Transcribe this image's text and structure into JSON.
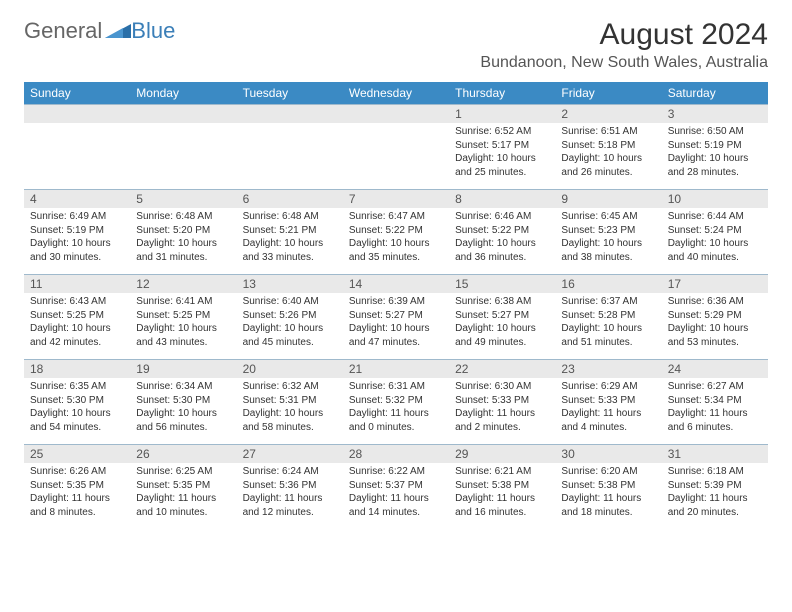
{
  "brand": {
    "part1": "General",
    "part2": "Blue"
  },
  "title": "August 2024",
  "location": "Bundanoon, New South Wales, Australia",
  "colors": {
    "header_bg": "#3b8ac4",
    "header_text": "#ffffff",
    "daynum_bg": "#e9e9e9",
    "border": "#9fb9cc",
    "logo_blue": "#3b7fb8",
    "text": "#333333"
  },
  "weekdays": [
    "Sunday",
    "Monday",
    "Tuesday",
    "Wednesday",
    "Thursday",
    "Friday",
    "Saturday"
  ],
  "weeks": [
    [
      null,
      null,
      null,
      null,
      {
        "d": "1",
        "sr": "Sunrise: 6:52 AM",
        "ss": "Sunset: 5:17 PM",
        "dl": "Daylight: 10 hours and 25 minutes."
      },
      {
        "d": "2",
        "sr": "Sunrise: 6:51 AM",
        "ss": "Sunset: 5:18 PM",
        "dl": "Daylight: 10 hours and 26 minutes."
      },
      {
        "d": "3",
        "sr": "Sunrise: 6:50 AM",
        "ss": "Sunset: 5:19 PM",
        "dl": "Daylight: 10 hours and 28 minutes."
      }
    ],
    [
      {
        "d": "4",
        "sr": "Sunrise: 6:49 AM",
        "ss": "Sunset: 5:19 PM",
        "dl": "Daylight: 10 hours and 30 minutes."
      },
      {
        "d": "5",
        "sr": "Sunrise: 6:48 AM",
        "ss": "Sunset: 5:20 PM",
        "dl": "Daylight: 10 hours and 31 minutes."
      },
      {
        "d": "6",
        "sr": "Sunrise: 6:48 AM",
        "ss": "Sunset: 5:21 PM",
        "dl": "Daylight: 10 hours and 33 minutes."
      },
      {
        "d": "7",
        "sr": "Sunrise: 6:47 AM",
        "ss": "Sunset: 5:22 PM",
        "dl": "Daylight: 10 hours and 35 minutes."
      },
      {
        "d": "8",
        "sr": "Sunrise: 6:46 AM",
        "ss": "Sunset: 5:22 PM",
        "dl": "Daylight: 10 hours and 36 minutes."
      },
      {
        "d": "9",
        "sr": "Sunrise: 6:45 AM",
        "ss": "Sunset: 5:23 PM",
        "dl": "Daylight: 10 hours and 38 minutes."
      },
      {
        "d": "10",
        "sr": "Sunrise: 6:44 AM",
        "ss": "Sunset: 5:24 PM",
        "dl": "Daylight: 10 hours and 40 minutes."
      }
    ],
    [
      {
        "d": "11",
        "sr": "Sunrise: 6:43 AM",
        "ss": "Sunset: 5:25 PM",
        "dl": "Daylight: 10 hours and 42 minutes."
      },
      {
        "d": "12",
        "sr": "Sunrise: 6:41 AM",
        "ss": "Sunset: 5:25 PM",
        "dl": "Daylight: 10 hours and 43 minutes."
      },
      {
        "d": "13",
        "sr": "Sunrise: 6:40 AM",
        "ss": "Sunset: 5:26 PM",
        "dl": "Daylight: 10 hours and 45 minutes."
      },
      {
        "d": "14",
        "sr": "Sunrise: 6:39 AM",
        "ss": "Sunset: 5:27 PM",
        "dl": "Daylight: 10 hours and 47 minutes."
      },
      {
        "d": "15",
        "sr": "Sunrise: 6:38 AM",
        "ss": "Sunset: 5:27 PM",
        "dl": "Daylight: 10 hours and 49 minutes."
      },
      {
        "d": "16",
        "sr": "Sunrise: 6:37 AM",
        "ss": "Sunset: 5:28 PM",
        "dl": "Daylight: 10 hours and 51 minutes."
      },
      {
        "d": "17",
        "sr": "Sunrise: 6:36 AM",
        "ss": "Sunset: 5:29 PM",
        "dl": "Daylight: 10 hours and 53 minutes."
      }
    ],
    [
      {
        "d": "18",
        "sr": "Sunrise: 6:35 AM",
        "ss": "Sunset: 5:30 PM",
        "dl": "Daylight: 10 hours and 54 minutes."
      },
      {
        "d": "19",
        "sr": "Sunrise: 6:34 AM",
        "ss": "Sunset: 5:30 PM",
        "dl": "Daylight: 10 hours and 56 minutes."
      },
      {
        "d": "20",
        "sr": "Sunrise: 6:32 AM",
        "ss": "Sunset: 5:31 PM",
        "dl": "Daylight: 10 hours and 58 minutes."
      },
      {
        "d": "21",
        "sr": "Sunrise: 6:31 AM",
        "ss": "Sunset: 5:32 PM",
        "dl": "Daylight: 11 hours and 0 minutes."
      },
      {
        "d": "22",
        "sr": "Sunrise: 6:30 AM",
        "ss": "Sunset: 5:33 PM",
        "dl": "Daylight: 11 hours and 2 minutes."
      },
      {
        "d": "23",
        "sr": "Sunrise: 6:29 AM",
        "ss": "Sunset: 5:33 PM",
        "dl": "Daylight: 11 hours and 4 minutes."
      },
      {
        "d": "24",
        "sr": "Sunrise: 6:27 AM",
        "ss": "Sunset: 5:34 PM",
        "dl": "Daylight: 11 hours and 6 minutes."
      }
    ],
    [
      {
        "d": "25",
        "sr": "Sunrise: 6:26 AM",
        "ss": "Sunset: 5:35 PM",
        "dl": "Daylight: 11 hours and 8 minutes."
      },
      {
        "d": "26",
        "sr": "Sunrise: 6:25 AM",
        "ss": "Sunset: 5:35 PM",
        "dl": "Daylight: 11 hours and 10 minutes."
      },
      {
        "d": "27",
        "sr": "Sunrise: 6:24 AM",
        "ss": "Sunset: 5:36 PM",
        "dl": "Daylight: 11 hours and 12 minutes."
      },
      {
        "d": "28",
        "sr": "Sunrise: 6:22 AM",
        "ss": "Sunset: 5:37 PM",
        "dl": "Daylight: 11 hours and 14 minutes."
      },
      {
        "d": "29",
        "sr": "Sunrise: 6:21 AM",
        "ss": "Sunset: 5:38 PM",
        "dl": "Daylight: 11 hours and 16 minutes."
      },
      {
        "d": "30",
        "sr": "Sunrise: 6:20 AM",
        "ss": "Sunset: 5:38 PM",
        "dl": "Daylight: 11 hours and 18 minutes."
      },
      {
        "d": "31",
        "sr": "Sunrise: 6:18 AM",
        "ss": "Sunset: 5:39 PM",
        "dl": "Daylight: 11 hours and 20 minutes."
      }
    ]
  ]
}
